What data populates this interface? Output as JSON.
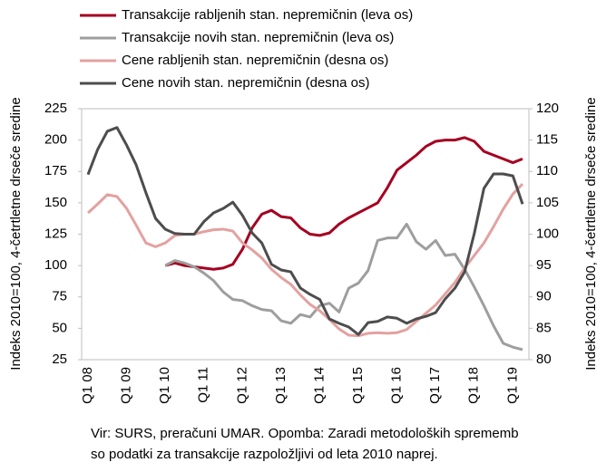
{
  "chart_data": {
    "type": "line",
    "categories": [
      "Q1 08",
      null,
      null,
      null,
      "Q1 09",
      null,
      null,
      null,
      "Q1 10",
      null,
      null,
      null,
      "Q1 11",
      null,
      null,
      null,
      "Q1 12",
      null,
      null,
      null,
      "Q1 13",
      null,
      null,
      null,
      "Q1 14",
      null,
      null,
      null,
      "Q1 15",
      null,
      null,
      null,
      "Q1 16",
      null,
      null,
      null,
      "Q1 17",
      null,
      null,
      null,
      "Q1 18",
      null,
      null,
      null,
      "Q1 19",
      null
    ],
    "series": [
      {
        "name": "Transakcije rabljenih stan. nepremičnin (leva os)",
        "color": "#a50021",
        "axis": "y",
        "values": [
          null,
          null,
          null,
          null,
          null,
          null,
          null,
          null,
          100,
          102,
          100,
          99,
          98,
          97,
          98,
          101,
          113,
          130,
          141,
          144,
          139,
          138,
          130,
          125,
          124,
          126,
          133,
          138,
          142,
          146,
          150,
          162,
          176,
          182,
          188,
          195,
          199,
          200,
          200,
          202,
          199,
          191,
          188,
          185,
          182,
          185
        ]
      },
      {
        "name": "Transakcije novih stan. nepremičnin (leva os)",
        "color": "#9e9e9e",
        "axis": "y",
        "values": [
          null,
          null,
          null,
          null,
          null,
          null,
          null,
          null,
          100,
          104,
          102,
          99,
          94,
          88,
          79,
          73,
          72,
          68,
          65,
          64,
          56,
          54,
          61,
          59,
          68,
          70,
          63,
          82,
          86,
          96,
          120,
          122,
          122,
          133,
          119,
          113,
          120,
          108,
          109,
          97,
          83,
          68,
          52,
          38,
          35,
          33
        ]
      },
      {
        "name": "Cene rabljenih stan. nepremičnin (desna os)",
        "color": "#e3a1a0",
        "axis": "y2",
        "values": [
          103.4,
          104.8,
          106.3,
          106,
          104.1,
          101.4,
          98.6,
          98,
          98.6,
          99.8,
          100,
          100,
          100.4,
          100.7,
          100.8,
          100.5,
          98.6,
          97.5,
          96.2,
          94.4,
          93.1,
          92,
          90.3,
          88.8,
          87.8,
          86.4,
          84.9,
          83.9,
          83.8,
          84.2,
          84.3,
          84.2,
          84.3,
          84.8,
          86.1,
          87.4,
          88.7,
          90.5,
          92.3,
          94.6,
          96.6,
          98.6,
          101.2,
          104,
          106.4,
          108
        ]
      },
      {
        "name": "Cene novih stan. nepremičnin (desna os)",
        "color": "#4d4d4d",
        "axis": "y2",
        "values": [
          109.5,
          113.5,
          116.4,
          117,
          114.2,
          111,
          106.6,
          102.5,
          100.8,
          100.1,
          100,
          100,
          102,
          103.4,
          104.1,
          105.1,
          103,
          100.2,
          98.6,
          95.2,
          94.3,
          94,
          91.4,
          90.4,
          89.6,
          86.5,
          85.8,
          85.2,
          84,
          85.9,
          86.1,
          86.8,
          86.6,
          85.8,
          86.5,
          86.9,
          87.5,
          89.7,
          91.4,
          94,
          100.1,
          107.3,
          109.6,
          109.6,
          109.3,
          104.8
        ]
      }
    ],
    "ylim": [
      25,
      225
    ],
    "yticks": [
      25,
      50,
      75,
      100,
      125,
      150,
      175,
      200,
      225
    ],
    "y2lim": [
      80,
      120
    ],
    "y2ticks": [
      80,
      85,
      90,
      95,
      100,
      105,
      110,
      115,
      120
    ],
    "ylabel": "Indeks 2010=100, 4-četrtletne drseče sredine",
    "y2label": "Indeks 2010=100, 4-četrtletne drseče sredine",
    "notes": [
      "Vir: SURS, preračuni UMAR. Opomba: Zaradi metodoloških sprememb",
      "so podatki za transakcije razpoložljivi od leta 2010 naprej."
    ]
  }
}
